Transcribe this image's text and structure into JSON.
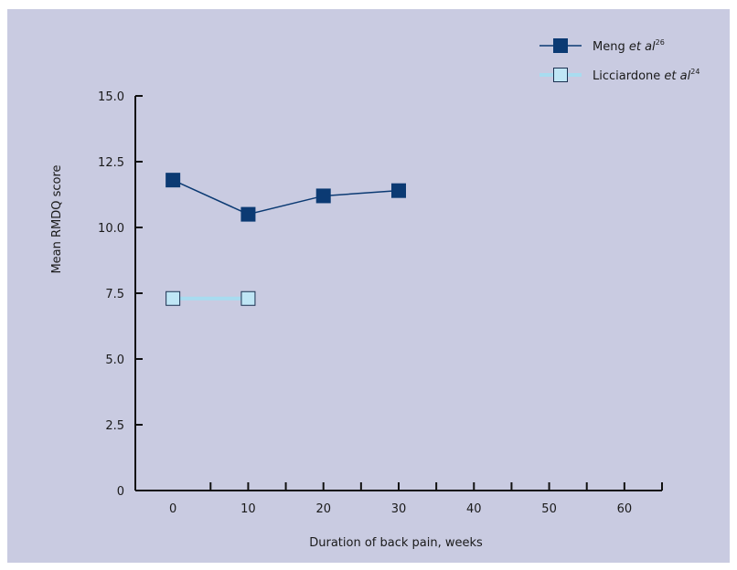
{
  "chart_data": {
    "type": "line",
    "xlabel": "Duration of back pain, weeks",
    "ylabel": "Mean RMDQ score",
    "xlim": [
      -5,
      65
    ],
    "ylim": [
      0,
      15
    ],
    "x_ticks": [
      0,
      10,
      20,
      30,
      40,
      50,
      60
    ],
    "x_tick_labels": [
      "0",
      "10",
      "20",
      "30",
      "40",
      "50",
      "60"
    ],
    "y_ticks": [
      0,
      2.5,
      5,
      7.5,
      10,
      12.5,
      15
    ],
    "y_tick_labels": [
      "0",
      "2.5",
      "5.0",
      "7.5",
      "10.0",
      "12.5",
      "15.0"
    ],
    "grid": false,
    "legend_position": "top-right",
    "series": [
      {
        "name": "Meng et al",
        "name_plain": "Meng ",
        "name_italic": "et al",
        "ref": "26",
        "color": "#0b3a73",
        "marker_fill": "#0b3a73",
        "x": [
          0,
          10,
          20,
          30
        ],
        "y": [
          11.8,
          10.5,
          11.2,
          11.4
        ]
      },
      {
        "name": "Licciardone et al",
        "name_plain": "Licciardone ",
        "name_italic": "et al",
        "ref": "24",
        "color": "#a8dcf0",
        "marker_fill": "#bfe6f5",
        "marker_stroke": "#1a3050",
        "x": [
          0,
          10
        ],
        "y": [
          7.3,
          7.3
        ]
      }
    ]
  }
}
